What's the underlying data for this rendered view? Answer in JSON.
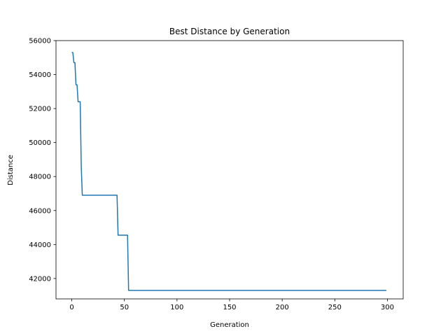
{
  "chart_data": {
    "type": "line",
    "title": "Best Distance by Generation",
    "xlabel": "Generation",
    "ylabel": "Distance",
    "xlim": [
      -15,
      315
    ],
    "ylim": [
      40800,
      56000
    ],
    "xticks": [
      0,
      50,
      100,
      150,
      200,
      250,
      300
    ],
    "xtick_labels": [
      "0",
      "50",
      "100",
      "150",
      "200",
      "250",
      "300"
    ],
    "yticks": [
      42000,
      44000,
      46000,
      48000,
      50000,
      52000,
      54000,
      56000
    ],
    "ytick_labels": [
      "42000",
      "44000",
      "46000",
      "48000",
      "50000",
      "52000",
      "54000",
      "56000"
    ],
    "grid": false,
    "line_color": "#1f77b4",
    "series": [
      {
        "x": [
          0,
          1,
          2,
          3,
          4,
          5,
          6,
          7,
          8,
          9,
          10,
          11,
          20,
          30,
          40,
          43,
          44,
          45,
          50,
          53,
          54,
          55,
          100,
          150,
          200,
          250,
          299
        ],
        "values": [
          55300,
          55300,
          54700,
          54700,
          53400,
          53400,
          52400,
          52400,
          52400,
          48600,
          46900,
          46900,
          46900,
          46900,
          46900,
          46900,
          44550,
          44550,
          44550,
          44550,
          41300,
          41300,
          41300,
          41300,
          41300,
          41300,
          41300
        ]
      }
    ]
  }
}
